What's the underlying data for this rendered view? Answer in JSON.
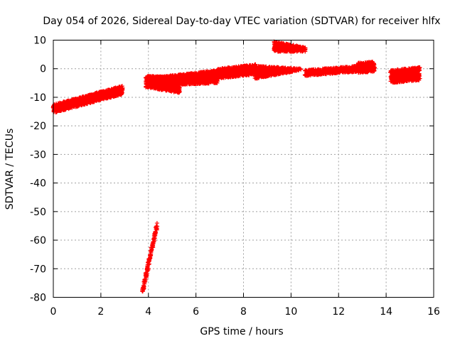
{
  "chart_data": {
    "type": "scatter",
    "title": "Day 054 of 2026, Sidereal Day-to-day VTEC variation (SDTVAR) for receiver hlfx",
    "xlabel": "GPS time / hours",
    "ylabel": "SDTVAR / TECUs",
    "xlim": [
      0,
      16
    ],
    "ylim": [
      -80,
      10
    ],
    "xticks": [
      0,
      2,
      4,
      6,
      8,
      10,
      12,
      14,
      16
    ],
    "yticks": [
      10,
      0,
      -10,
      -20,
      -30,
      -40,
      -50,
      -60,
      -70,
      -80
    ],
    "grid": true,
    "marker": "plus",
    "color": "#ff0000",
    "series": [
      {
        "name": "SDTVAR",
        "bands": [
          {
            "x": [
              0.0,
              2.9
            ],
            "y_low": [
              -15.5,
              -9.0
            ],
            "y_high": [
              -12.5,
              -6.0
            ]
          },
          {
            "x": [
              3.9,
              5.3
            ],
            "y_low": [
              -6.5,
              -8.5
            ],
            "y_high": [
              -2.5,
              -3.0
            ]
          },
          {
            "x": [
              4.3,
              6.9
            ],
            "y_low": [
              -6.0,
              -5.0
            ],
            "y_high": [
              -3.0,
              -0.5
            ]
          },
          {
            "x": [
              6.9,
              8.5
            ],
            "y_low": [
              -3.5,
              -2.0
            ],
            "y_high": [
              0.0,
              1.5
            ]
          },
          {
            "x": [
              8.5,
              10.4
            ],
            "y_low": [
              -3.5,
              -0.5
            ],
            "y_high": [
              1.0,
              0.0
            ]
          },
          {
            "x": [
              9.3,
              10.6
            ],
            "y_low": [
              6.0,
              6.0
            ],
            "y_high": [
              9.5,
              7.5
            ]
          },
          {
            "x": [
              10.6,
              12.8
            ],
            "y_low": [
              -2.5,
              -1.0
            ],
            "y_high": [
              -0.5,
              1.0
            ]
          },
          {
            "x": [
              12.8,
              13.5
            ],
            "y_low": [
              -1.5,
              -1.0
            ],
            "y_high": [
              2.0,
              2.5
            ]
          },
          {
            "x": [
              14.2,
              15.4
            ],
            "y_low": [
              -5.0,
              -4.0
            ],
            "y_high": [
              -0.5,
              0.5
            ]
          },
          {
            "x": [
              3.75,
              4.35
            ],
            "y_low": [
              -79.0,
              -56.0
            ],
            "y_high": [
              -77.0,
              -54.0
            ]
          }
        ]
      }
    ]
  }
}
